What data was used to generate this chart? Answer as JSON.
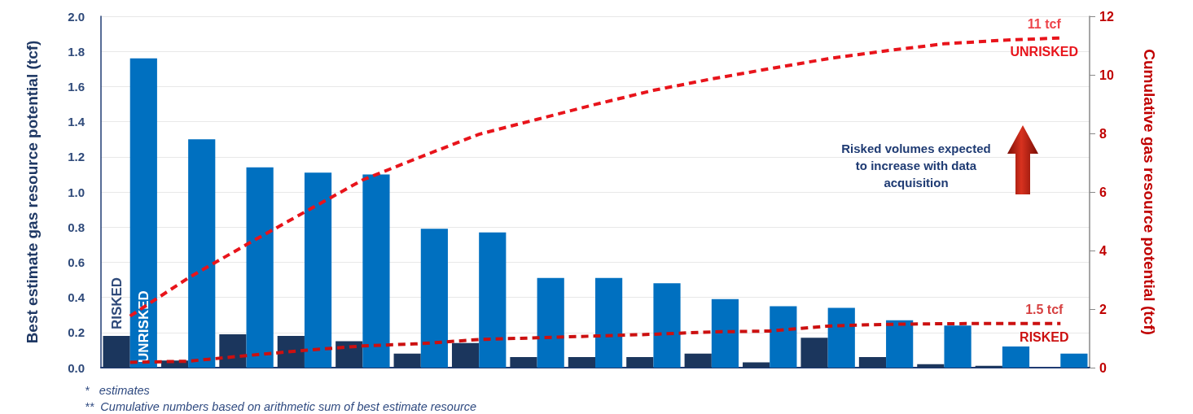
{
  "chart_data": {
    "type": "bar",
    "ylabel": "Best estimate gas resource potential (tcf)",
    "y2label": "Cumulative gas resource potential (tcf)",
    "categories": [
      null,
      null,
      null,
      null,
      null,
      null,
      null,
      null,
      null,
      null,
      null,
      null,
      null,
      null,
      null,
      null,
      null
    ],
    "series": [
      {
        "name": "RISKED",
        "color": "#1b365d",
        "values": [
          0.18,
          0.04,
          0.19,
          0.18,
          0.15,
          0.08,
          0.14,
          0.06,
          0.06,
          0.06,
          0.08,
          0.03,
          0.17,
          0.06,
          0.02,
          0.01,
          0.0
        ]
      },
      {
        "name": "UNRISKED",
        "color": "#0070c0",
        "values": [
          1.76,
          1.3,
          1.14,
          1.11,
          1.1,
          0.79,
          0.77,
          0.51,
          0.51,
          0.48,
          0.39,
          0.35,
          0.34,
          0.27,
          0.24,
          0.12,
          0.08
        ]
      },
      {
        "name": "UNRISKED",
        "type": "line",
        "axis": "y2",
        "color": "#e8141b",
        "line_style": "dashed",
        "values": [
          1.76,
          3.06,
          4.2,
          5.31,
          6.41,
          7.2,
          7.97,
          8.48,
          8.99,
          9.47,
          9.86,
          10.21,
          10.55,
          10.82,
          11.06,
          11.18,
          11.26
        ]
      },
      {
        "name": "RISKED",
        "type": "line",
        "axis": "y2",
        "color": "#cc1010",
        "line_style": "dashed",
        "values": [
          0.18,
          0.22,
          0.41,
          0.59,
          0.74,
          0.82,
          0.96,
          1.02,
          1.08,
          1.14,
          1.22,
          1.25,
          1.42,
          1.48,
          1.5,
          1.51,
          1.51
        ]
      }
    ],
    "ylim": [
      0,
      2.0
    ],
    "yticks": [
      {
        "value": 0,
        "label": "0.0"
      },
      0.2,
      0.4,
      0.6,
      0.8,
      {
        "value": 1,
        "label": "1.0"
      },
      1.2,
      1.4,
      1.6,
      1.8,
      {
        "value": 2,
        "label": "2.0"
      }
    ],
    "y2lim": [
      0,
      12
    ],
    "y2ticks": [
      0,
      2,
      4,
      6,
      8,
      10,
      12
    ],
    "grid": "y",
    "legend": false,
    "annotations": [
      "11 tcf",
      "1.5 tcf",
      "Risked volumes expected to increase with data acquisition",
      "*   estimates",
      "**  Cumulative numbers based on arithmetic sum of best estimate resource"
    ]
  }
}
